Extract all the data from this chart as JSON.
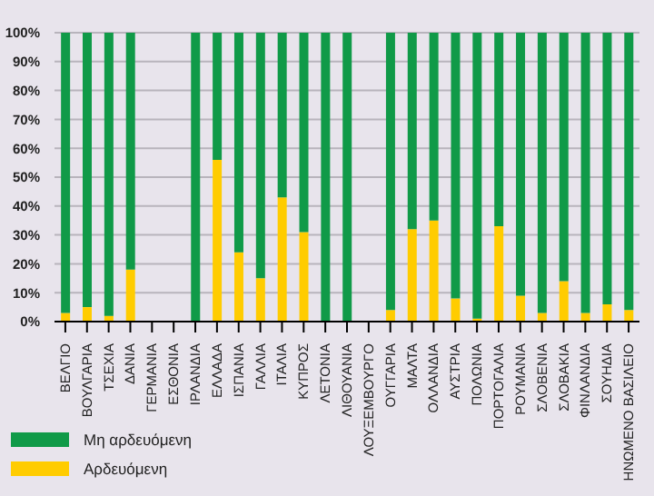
{
  "chart_data": {
    "type": "bar",
    "stacked": true,
    "categories": [
      "ΒΕΛΓΙΟ",
      "ΒΟΥΛΓΑΡΙΑ",
      "ΤΣΕΧΙΑ",
      "ΔΑΝΙΑ",
      "ΓΕΡΜΑΝΙΑ",
      "ΕΣΘΟΝΙΑ",
      "ΙΡΛΑΝΔΙΑ",
      "ΕΛΛΑΔΑ",
      "ΙΣΠΑΝΙΑ",
      "ΓΑΛΛΙΑ",
      "ΙΤΑΛΙΑ",
      "ΚΥΠΡΟΣ",
      "ΛΕΤΟΝΙΑ",
      "ΛΙΘΟΥΑΝΙΑ",
      "ΛΟΥΞΕΜΒΟΥΡΓΟ",
      "ΟΥΓΓΑΡΙΑ",
      "ΜΑΛΤΑ",
      "ΟΛΛΑΝΔΙΑ",
      "ΑΥΣΤΡΙΑ",
      "ΠΟΛΩΝΙΑ",
      "ΠΟΡΤΟΓΑΛΙΑ",
      "ΡΟΥΜΑΝΙΑ",
      "ΣΛΟΒΕΝΙΑ",
      "ΣΛΟΒΑΚΙΑ",
      "ΦΙΝΛΑΝΔΙΑ",
      "ΣΟΥΗΔΙΑ",
      "ΗΝΩΜΕΝΟ ΒΑΣΙΛΕΙΟ"
    ],
    "series": [
      {
        "name": "Αρδευόμενη",
        "color": "#ffcc00",
        "values": [
          3,
          5,
          2,
          18,
          null,
          null,
          0,
          56,
          24,
          15,
          43,
          31,
          0,
          0,
          null,
          4,
          32,
          35,
          8,
          1,
          33,
          9,
          3,
          14,
          3,
          6,
          4
        ]
      },
      {
        "name": "Μη αρδευόμενη",
        "color": "#109a48",
        "values": [
          97,
          95,
          98,
          82,
          null,
          null,
          100,
          44,
          76,
          85,
          57,
          69,
          100,
          100,
          null,
          96,
          68,
          65,
          92,
          99,
          67,
          91,
          97,
          86,
          97,
          94,
          96
        ]
      }
    ],
    "ylim": [
      0,
      100
    ],
    "yticks": [
      {
        "value": 0,
        "label": "0%"
      },
      {
        "value": 10,
        "label": "10%"
      },
      {
        "value": 20,
        "label": "20%"
      },
      {
        "value": 30,
        "label": "30%"
      },
      {
        "value": 40,
        "label": "40%"
      },
      {
        "value": 50,
        "label": "50%"
      },
      {
        "value": 60,
        "label": "60%"
      },
      {
        "value": 70,
        "label": "70%"
      },
      {
        "value": 80,
        "label": "80%"
      },
      {
        "value": 90,
        "label": "90%"
      },
      {
        "value": 100,
        "label": "100%"
      }
    ],
    "grid": "y",
    "legend": "bottom left"
  }
}
